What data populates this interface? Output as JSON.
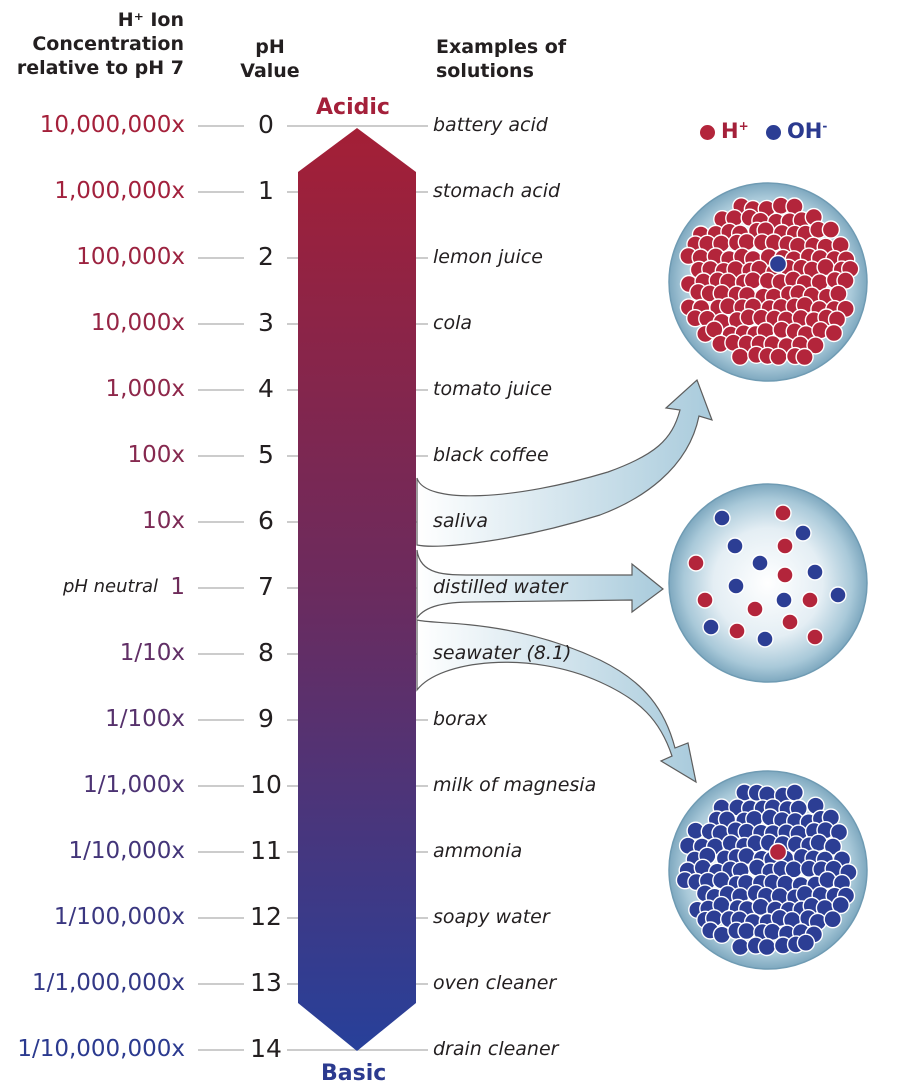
{
  "headers": {
    "concentration": [
      "H⁺ Ion",
      "Concentration",
      "relative to pH 7"
    ],
    "ph_value": [
      "pH",
      "Value"
    ],
    "examples": [
      "Examples of",
      "solutions"
    ]
  },
  "scale_labels": {
    "top": "Acidic",
    "bottom": "Basic"
  },
  "legend": {
    "h_label": "H",
    "h_sup": "+",
    "oh_label": "OH",
    "oh_sup": "-"
  },
  "colors": {
    "acid": "#a4203a",
    "base": "#2b3a8f",
    "neutral": "#6e2b5a",
    "line": "#9a9a9a"
  },
  "rows": [
    {
      "ph": "0",
      "concentration": "10,000,000x",
      "example": "battery acid",
      "color": "#a4203a"
    },
    {
      "ph": "1",
      "concentration": "1,000,000x",
      "example": "stomach acid",
      "color": "#a2213d"
    },
    {
      "ph": "2",
      "concentration": "100,000x",
      "example": "lemon juice",
      "color": "#9c2340"
    },
    {
      "ph": "3",
      "concentration": "10,000x",
      "example": "cola",
      "color": "#962545"
    },
    {
      "ph": "4",
      "concentration": "1,000x",
      "example": "tomato juice",
      "color": "#8e274a"
    },
    {
      "ph": "5",
      "concentration": "100x",
      "example": "black coffee",
      "color": "#86294f"
    },
    {
      "ph": "6",
      "concentration": "10x",
      "example": "saliva",
      "color": "#7c2a55"
    },
    {
      "ph": "7",
      "concentration": "1",
      "example": "distilled water",
      "color": "#6e2b5a",
      "note": "pH neutral"
    },
    {
      "ph": "8",
      "concentration": "1/10x",
      "example": "seawater (8.1)",
      "color": "#612f66"
    },
    {
      "ph": "9",
      "concentration": "1/100x",
      "example": "borax",
      "color": "#56316c"
    },
    {
      "ph": "10",
      "concentration": "1/1,000x",
      "example": "milk of magnesia",
      "color": "#4c3373"
    },
    {
      "ph": "11",
      "concentration": "1/10,000x",
      "example": "ammonia",
      "color": "#433579"
    },
    {
      "ph": "12",
      "concentration": "1/100,000x",
      "example": "soapy water",
      "color": "#3a3780"
    },
    {
      "ph": "13",
      "concentration": "1/1,000,000x",
      "example": "oven cleaner",
      "color": "#333886"
    },
    {
      "ph": "14",
      "concentration": "1/10,000,000x",
      "example": "drain cleaner",
      "color": "#2b3a8f"
    }
  ]
}
